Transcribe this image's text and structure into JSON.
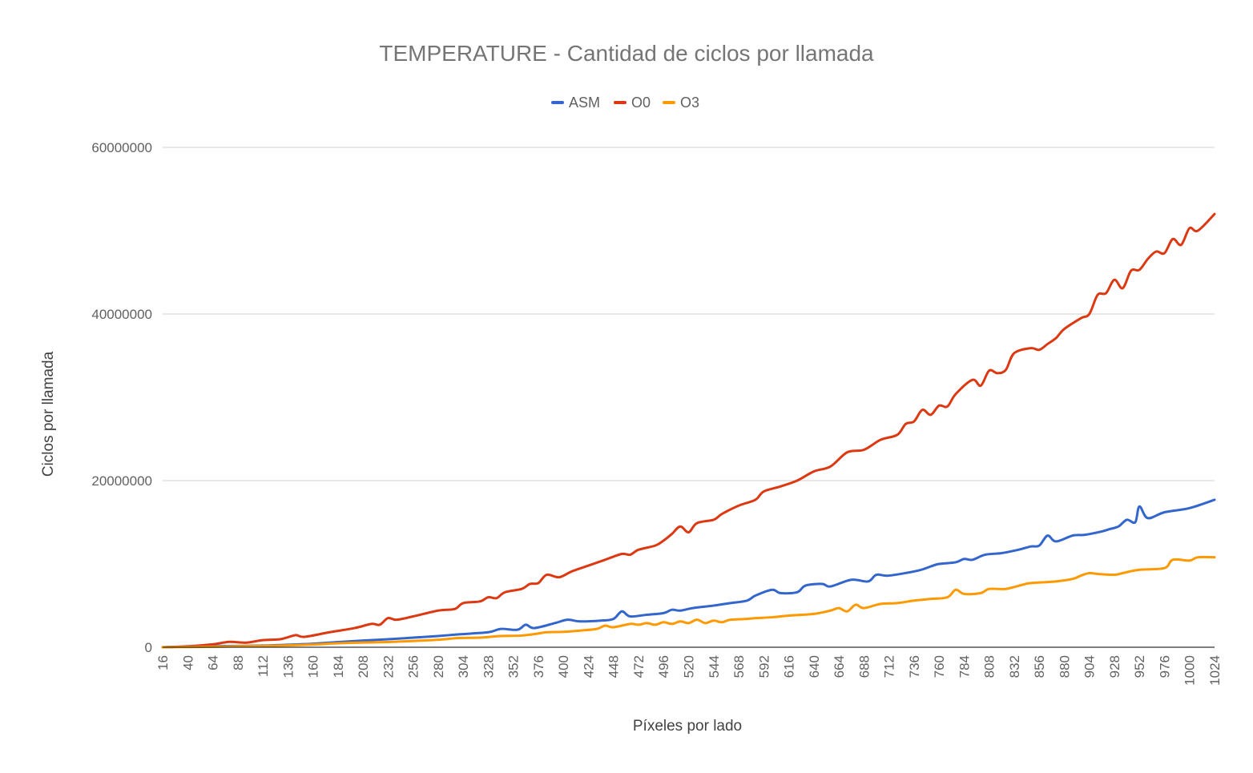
{
  "chart_data": {
    "type": "line",
    "title": "TEMPERATURE - Cantidad de ciclos por llamada",
    "xlabel": "Píxeles por lado",
    "ylabel": "Ciclos por llamada",
    "legend_position": "top",
    "grid": true,
    "xlim": [
      16,
      1024
    ],
    "ylim": [
      0,
      60000000
    ],
    "y_ticks": [
      0,
      20000000,
      40000000,
      60000000
    ],
    "x_ticks": [
      16,
      40,
      64,
      88,
      112,
      136,
      160,
      184,
      208,
      232,
      256,
      280,
      304,
      328,
      352,
      376,
      400,
      424,
      448,
      472,
      496,
      520,
      544,
      568,
      592,
      616,
      640,
      664,
      688,
      712,
      736,
      760,
      784,
      808,
      832,
      856,
      880,
      904,
      928,
      952,
      976,
      1000,
      1024
    ],
    "series": [
      {
        "name": "ASM",
        "color": "#3366cc",
        "points": [
          [
            16,
            0
          ],
          [
            40,
            80000
          ],
          [
            64,
            120000
          ],
          [
            88,
            160000
          ],
          [
            112,
            200000
          ],
          [
            136,
            300000
          ],
          [
            160,
            420000
          ],
          [
            184,
            620000
          ],
          [
            208,
            800000
          ],
          [
            232,
            960000
          ],
          [
            256,
            1150000
          ],
          [
            280,
            1350000
          ],
          [
            300,
            1550000
          ],
          [
            328,
            1800000
          ],
          [
            340,
            2200000
          ],
          [
            356,
            2100000
          ],
          [
            364,
            2700000
          ],
          [
            372,
            2300000
          ],
          [
            392,
            2900000
          ],
          [
            404,
            3300000
          ],
          [
            416,
            3100000
          ],
          [
            436,
            3200000
          ],
          [
            448,
            3400000
          ],
          [
            456,
            4300000
          ],
          [
            464,
            3700000
          ],
          [
            480,
            3900000
          ],
          [
            496,
            4100000
          ],
          [
            504,
            4500000
          ],
          [
            512,
            4400000
          ],
          [
            524,
            4700000
          ],
          [
            544,
            5000000
          ],
          [
            560,
            5300000
          ],
          [
            576,
            5600000
          ],
          [
            584,
            6200000
          ],
          [
            600,
            6900000
          ],
          [
            608,
            6500000
          ],
          [
            624,
            6600000
          ],
          [
            632,
            7400000
          ],
          [
            648,
            7600000
          ],
          [
            656,
            7300000
          ],
          [
            676,
            8100000
          ],
          [
            692,
            7900000
          ],
          [
            700,
            8700000
          ],
          [
            712,
            8600000
          ],
          [
            740,
            9200000
          ],
          [
            752,
            9700000
          ],
          [
            760,
            10000000
          ],
          [
            776,
            10200000
          ],
          [
            784,
            10600000
          ],
          [
            792,
            10500000
          ],
          [
            804,
            11100000
          ],
          [
            820,
            11300000
          ],
          [
            836,
            11700000
          ],
          [
            848,
            12100000
          ],
          [
            856,
            12200000
          ],
          [
            864,
            13400000
          ],
          [
            872,
            12700000
          ],
          [
            888,
            13400000
          ],
          [
            900,
            13500000
          ],
          [
            916,
            13900000
          ],
          [
            924,
            14200000
          ],
          [
            932,
            14500000
          ],
          [
            940,
            15300000
          ],
          [
            948,
            15000000
          ],
          [
            952,
            16900000
          ],
          [
            960,
            15500000
          ],
          [
            976,
            16200000
          ],
          [
            1000,
            16700000
          ],
          [
            1024,
            17700000
          ]
        ]
      },
      {
        "name": "O0",
        "color": "#dc3912",
        "points": [
          [
            16,
            0
          ],
          [
            40,
            120000
          ],
          [
            64,
            350000
          ],
          [
            80,
            650000
          ],
          [
            96,
            550000
          ],
          [
            112,
            850000
          ],
          [
            128,
            950000
          ],
          [
            136,
            1200000
          ],
          [
            144,
            1450000
          ],
          [
            152,
            1250000
          ],
          [
            176,
            1800000
          ],
          [
            200,
            2300000
          ],
          [
            216,
            2800000
          ],
          [
            224,
            2700000
          ],
          [
            232,
            3500000
          ],
          [
            240,
            3300000
          ],
          [
            256,
            3700000
          ],
          [
            280,
            4400000
          ],
          [
            296,
            4600000
          ],
          [
            304,
            5300000
          ],
          [
            320,
            5500000
          ],
          [
            328,
            6000000
          ],
          [
            336,
            5900000
          ],
          [
            344,
            6600000
          ],
          [
            360,
            7000000
          ],
          [
            368,
            7600000
          ],
          [
            376,
            7700000
          ],
          [
            384,
            8700000
          ],
          [
            396,
            8400000
          ],
          [
            408,
            9100000
          ],
          [
            424,
            9800000
          ],
          [
            440,
            10500000
          ],
          [
            456,
            11200000
          ],
          [
            464,
            11100000
          ],
          [
            472,
            11700000
          ],
          [
            488,
            12200000
          ],
          [
            496,
            12800000
          ],
          [
            504,
            13600000
          ],
          [
            512,
            14500000
          ],
          [
            520,
            13800000
          ],
          [
            528,
            14900000
          ],
          [
            544,
            15300000
          ],
          [
            552,
            16000000
          ],
          [
            568,
            17000000
          ],
          [
            584,
            17700000
          ],
          [
            592,
            18700000
          ],
          [
            608,
            19300000
          ],
          [
            624,
            20000000
          ],
          [
            640,
            21100000
          ],
          [
            656,
            21700000
          ],
          [
            672,
            23400000
          ],
          [
            688,
            23700000
          ],
          [
            704,
            24900000
          ],
          [
            720,
            25500000
          ],
          [
            728,
            26800000
          ],
          [
            736,
            27100000
          ],
          [
            744,
            28500000
          ],
          [
            752,
            27900000
          ],
          [
            760,
            29000000
          ],
          [
            768,
            28900000
          ],
          [
            776,
            30400000
          ],
          [
            792,
            32100000
          ],
          [
            800,
            31400000
          ],
          [
            808,
            33200000
          ],
          [
            816,
            32900000
          ],
          [
            824,
            33300000
          ],
          [
            832,
            35300000
          ],
          [
            848,
            35900000
          ],
          [
            856,
            35700000
          ],
          [
            864,
            36400000
          ],
          [
            872,
            37100000
          ],
          [
            880,
            38200000
          ],
          [
            896,
            39500000
          ],
          [
            904,
            40000000
          ],
          [
            912,
            42300000
          ],
          [
            920,
            42500000
          ],
          [
            928,
            44100000
          ],
          [
            936,
            43100000
          ],
          [
            944,
            45200000
          ],
          [
            952,
            45300000
          ],
          [
            960,
            46600000
          ],
          [
            968,
            47500000
          ],
          [
            976,
            47300000
          ],
          [
            984,
            49000000
          ],
          [
            992,
            48300000
          ],
          [
            1000,
            50300000
          ],
          [
            1008,
            50000000
          ],
          [
            1024,
            52000000
          ]
        ]
      },
      {
        "name": "O3",
        "color": "#ff9900",
        "points": [
          [
            16,
            0
          ],
          [
            40,
            30000
          ],
          [
            64,
            60000
          ],
          [
            88,
            120000
          ],
          [
            112,
            160000
          ],
          [
            136,
            230000
          ],
          [
            160,
            330000
          ],
          [
            184,
            480000
          ],
          [
            208,
            560000
          ],
          [
            232,
            630000
          ],
          [
            256,
            750000
          ],
          [
            280,
            900000
          ],
          [
            300,
            1100000
          ],
          [
            320,
            1150000
          ],
          [
            340,
            1350000
          ],
          [
            360,
            1400000
          ],
          [
            376,
            1650000
          ],
          [
            384,
            1800000
          ],
          [
            400,
            1850000
          ],
          [
            416,
            2000000
          ],
          [
            432,
            2200000
          ],
          [
            440,
            2600000
          ],
          [
            448,
            2400000
          ],
          [
            464,
            2800000
          ],
          [
            472,
            2700000
          ],
          [
            480,
            2900000
          ],
          [
            488,
            2700000
          ],
          [
            496,
            3000000
          ],
          [
            504,
            2800000
          ],
          [
            512,
            3100000
          ],
          [
            520,
            2900000
          ],
          [
            528,
            3300000
          ],
          [
            536,
            2900000
          ],
          [
            544,
            3200000
          ],
          [
            552,
            3000000
          ],
          [
            560,
            3300000
          ],
          [
            576,
            3400000
          ],
          [
            584,
            3500000
          ],
          [
            600,
            3600000
          ],
          [
            616,
            3800000
          ],
          [
            640,
            4000000
          ],
          [
            656,
            4400000
          ],
          [
            664,
            4700000
          ],
          [
            672,
            4300000
          ],
          [
            680,
            5100000
          ],
          [
            688,
            4700000
          ],
          [
            704,
            5200000
          ],
          [
            720,
            5300000
          ],
          [
            736,
            5600000
          ],
          [
            752,
            5800000
          ],
          [
            768,
            6000000
          ],
          [
            776,
            6900000
          ],
          [
            784,
            6400000
          ],
          [
            800,
            6500000
          ],
          [
            808,
            7000000
          ],
          [
            824,
            7000000
          ],
          [
            840,
            7500000
          ],
          [
            848,
            7700000
          ],
          [
            872,
            7900000
          ],
          [
            888,
            8200000
          ],
          [
            896,
            8600000
          ],
          [
            904,
            8900000
          ],
          [
            912,
            8800000
          ],
          [
            928,
            8700000
          ],
          [
            936,
            8900000
          ],
          [
            952,
            9300000
          ],
          [
            976,
            9500000
          ],
          [
            984,
            10500000
          ],
          [
            1000,
            10400000
          ],
          [
            1008,
            10800000
          ],
          [
            1024,
            10800000
          ]
        ]
      }
    ]
  }
}
